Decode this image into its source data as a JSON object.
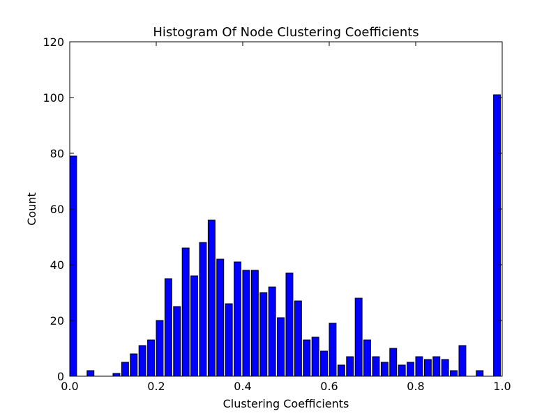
{
  "chart_data": {
    "type": "bar",
    "title": "Histogram Of Node Clustering Coefficients",
    "xlabel": "Clustering Coefficients",
    "ylabel": "Count",
    "xlim": [
      0.0,
      1.0
    ],
    "ylim": [
      0,
      120
    ],
    "x_ticks": [
      "0.0",
      "0.2",
      "0.4",
      "0.6",
      "0.8",
      "1.0"
    ],
    "y_ticks": [
      "0",
      "20",
      "40",
      "60",
      "80",
      "100",
      "120"
    ],
    "bin_width": 0.02,
    "bar_color": "#0000ff",
    "edge_color": "#000000",
    "grid": false,
    "bins": [
      0.0,
      0.02,
      0.04,
      0.06,
      0.08,
      0.1,
      0.12,
      0.14,
      0.16,
      0.18,
      0.2,
      0.22,
      0.24,
      0.26,
      0.28,
      0.3,
      0.32,
      0.34,
      0.36,
      0.38,
      0.4,
      0.42,
      0.44,
      0.46,
      0.48,
      0.5,
      0.52,
      0.54,
      0.56,
      0.58,
      0.6,
      0.62,
      0.64,
      0.66,
      0.68,
      0.7,
      0.72,
      0.74,
      0.76,
      0.78,
      0.8,
      0.82,
      0.84,
      0.86,
      0.88,
      0.9,
      0.92,
      0.94,
      0.96,
      0.98
    ],
    "values": [
      79,
      0,
      2,
      0,
      0,
      1,
      5,
      8,
      11,
      13,
      20,
      35,
      25,
      46,
      36,
      48,
      56,
      42,
      26,
      41,
      38,
      38,
      30,
      32,
      21,
      37,
      27,
      13,
      14,
      9,
      19,
      4,
      7,
      28,
      13,
      7,
      5,
      10,
      4,
      5,
      7,
      6,
      7,
      6,
      2,
      11,
      0,
      2,
      0,
      101
    ]
  }
}
